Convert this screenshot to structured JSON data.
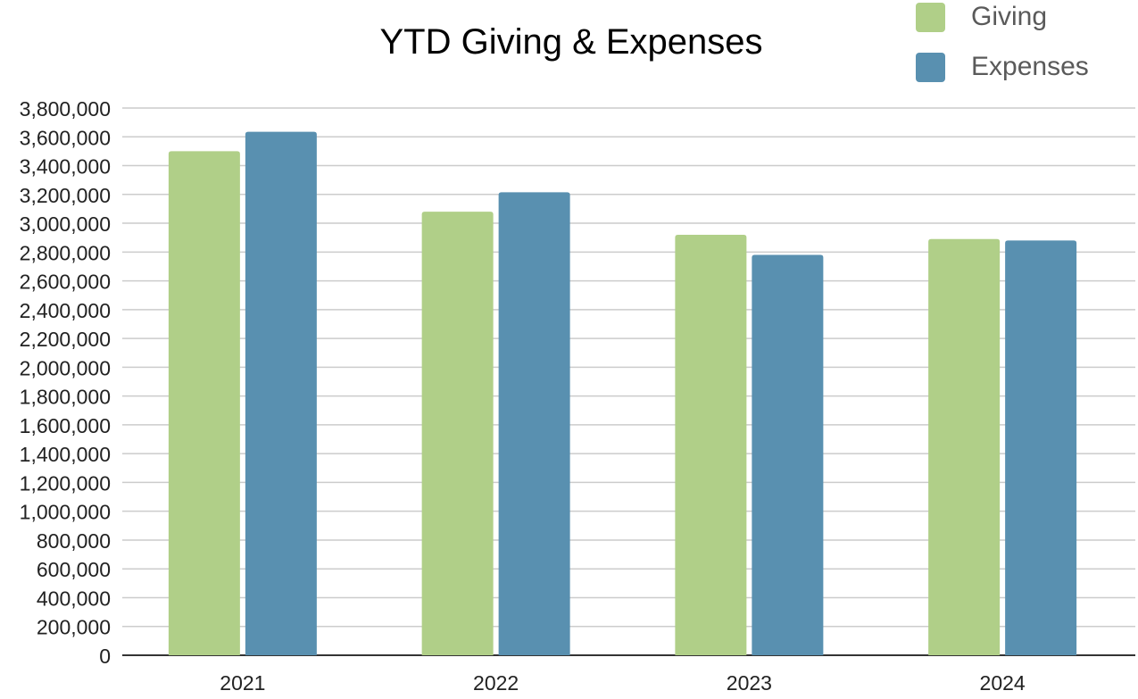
{
  "chart_data": {
    "type": "bar",
    "title": "YTD Giving & Expenses",
    "xlabel": "",
    "ylabel": "",
    "categories": [
      "2021",
      "2022",
      "2023",
      "2024"
    ],
    "series": [
      {
        "name": "Giving",
        "color": "#b0cf88",
        "values": [
          3500000,
          3080000,
          2920000,
          2890000
        ]
      },
      {
        "name": "Expenses",
        "color": "#5990b0",
        "values": [
          3635000,
          3215000,
          2780000,
          2880000
        ]
      }
    ],
    "ylim": [
      0,
      3800000
    ],
    "ytick_step": 200000,
    "ytick_labels": [
      "0",
      "200,000",
      "400,000",
      "600,000",
      "800,000",
      "1,000,000",
      "1,200,000",
      "1,400,000",
      "1,600,000",
      "1,800,000",
      "2,000,000",
      "2,200,000",
      "2,400,000",
      "2,600,000",
      "2,800,000",
      "3,000,000",
      "3,200,000",
      "3,400,000",
      "3,600,000",
      "3,800,000"
    ],
    "grid": true,
    "legend_position": "top-right",
    "gridline_color": "#cccccc",
    "axis_color": "#333333"
  }
}
